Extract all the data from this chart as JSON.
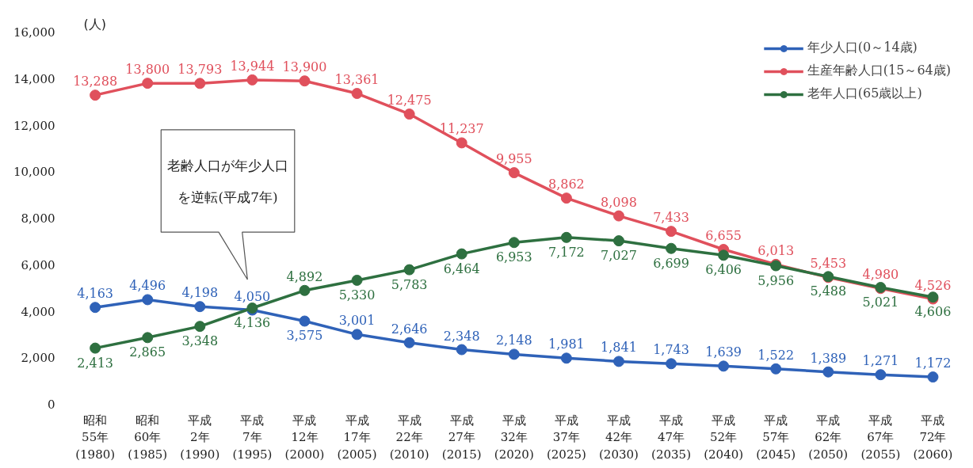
{
  "chart_data": {
    "type": "line",
    "ylabel": "(人)",
    "categories": [
      "昭和\n55年\n(1980)",
      "昭和\n60年\n(1985)",
      "平成\n2年\n(1990)",
      "平成\n7年\n(1995)",
      "平成\n12年\n(2000)",
      "平成\n17年\n(2005)",
      "平成\n22年\n(2010)",
      "平成\n27年\n(2015)",
      "平成\n32年\n(2020)",
      "平成\n37年\n(2025)",
      "平成\n42年\n(2030)",
      "平成\n47年\n(2035)",
      "平成\n52年\n(2040)",
      "平成\n57年\n(2045)",
      "平成\n62年\n(2050)",
      "平成\n67年\n(2055)",
      "平成\n72年\n(2060)"
    ],
    "series": [
      {
        "name": "年少人口(0～14歳)",
        "color": "#2f62b8",
        "values": [
          4163,
          4496,
          4198,
          4050,
          3575,
          3001,
          2646,
          2348,
          2148,
          1981,
          1841,
          1743,
          1639,
          1522,
          1389,
          1271,
          1172
        ],
        "value_labels": [
          "4,163",
          "4,496",
          "4,198",
          "4,050",
          "3,575",
          "3,001",
          "2,646",
          "2,348",
          "2,148",
          "1,981",
          "1,841",
          "1,743",
          "1,639",
          "1,522",
          "1,389",
          "1,271",
          "1,172"
        ]
      },
      {
        "name": "生産年齢人口(15～64歳)",
        "color": "#e0505c",
        "values": [
          13288,
          13800,
          13793,
          13944,
          13900,
          13361,
          12475,
          11237,
          9955,
          8862,
          8098,
          7433,
          6655,
          6013,
          5453,
          4980,
          4526
        ],
        "value_labels": [
          "13,288",
          "13,800",
          "13,793",
          "13,944",
          "13,900",
          "13,361",
          "12,475",
          "11,237",
          "9,955",
          "8,862",
          "8,098",
          "7,433",
          "6,655",
          "6,013",
          "5,453",
          "4,980",
          "4,526"
        ]
      },
      {
        "name": "老年人口(65歳以上)",
        "color": "#2e7040",
        "values": [
          2413,
          2865,
          3348,
          4136,
          4892,
          5330,
          5783,
          6464,
          6953,
          7172,
          7027,
          6699,
          6406,
          5956,
          5488,
          5021,
          4606
        ],
        "value_labels": [
          "2,413",
          "2,865",
          "3,348",
          "4,136",
          "4,892",
          "5,330",
          "5,783",
          "6,464",
          "6,953",
          "7,172",
          "7,027",
          "6,699",
          "6,406",
          "5,956",
          "5,488",
          "5,021",
          "4,606"
        ]
      }
    ],
    "ylim": [
      0,
      16000
    ],
    "yticks": [
      0,
      {
        "value": 2000,
        "label": "2,000"
      },
      {
        "value": 4000,
        "label": "4,000"
      },
      {
        "value": 6000,
        "label": "6,000"
      },
      {
        "value": 8000,
        "label": "8,000"
      },
      {
        "value": 10000,
        "label": "10,000"
      },
      {
        "value": 12000,
        "label": "12,000"
      },
      {
        "value": 14000,
        "label": "14,000"
      },
      {
        "value": 16000,
        "label": "16,000"
      }
    ],
    "annotations": [
      "老齢人口が年少人口を逆転(平成7年)"
    ],
    "data_labels": true,
    "grid": false,
    "marker": "circle",
    "line_style": "solid",
    "legend": "top right"
  }
}
